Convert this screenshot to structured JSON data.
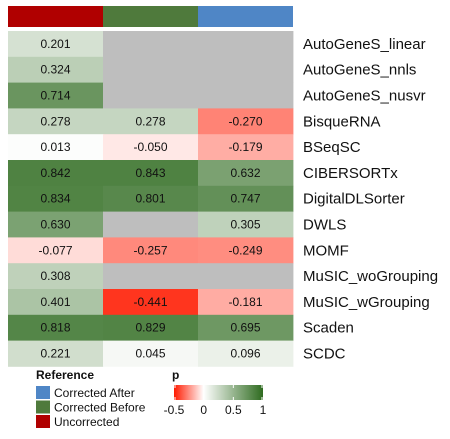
{
  "chart_data": {
    "type": "heatmap",
    "columns": [
      "Uncorrected",
      "Corrected Before",
      "Corrected After"
    ],
    "column_colors": {
      "Uncorrected": "#b00000",
      "Corrected Before": "#4f7a3c",
      "Corrected After": "#4f86c6"
    },
    "rows": [
      "AutoGeneS_linear",
      "AutoGeneS_nnls",
      "AutoGeneS_nusvr",
      "BisqueRNA",
      "BSeqSC",
      "CIBERSORTx",
      "DigitalDLSorter",
      "DWLS",
      "MOMF",
      "MuSIC_woGrouping",
      "MuSIC_wGrouping",
      "Scaden",
      "SCDC"
    ],
    "values": [
      [
        0.201,
        null,
        null
      ],
      [
        0.324,
        null,
        null
      ],
      [
        0.714,
        null,
        null
      ],
      [
        0.278,
        0.278,
        -0.27
      ],
      [
        0.013,
        -0.05,
        -0.179
      ],
      [
        0.842,
        0.843,
        0.632
      ],
      [
        0.834,
        0.801,
        0.747
      ],
      [
        0.63,
        null,
        0.305
      ],
      [
        -0.077,
        -0.257,
        -0.249
      ],
      [
        0.308,
        null,
        null
      ],
      [
        0.401,
        -0.441,
        -0.181
      ],
      [
        0.818,
        0.829,
        0.695
      ],
      [
        0.221,
        0.045,
        0.096
      ]
    ],
    "cell_labels": [
      [
        "0.201",
        "",
        ""
      ],
      [
        "0.324",
        "",
        ""
      ],
      [
        "0.714",
        "",
        ""
      ],
      [
        "0.278",
        "0.278",
        "-0.270"
      ],
      [
        "0.013",
        "-0.050",
        "-0.179"
      ],
      [
        "0.842",
        "0.843",
        "0.632"
      ],
      [
        "0.834",
        "0.801",
        "0.747"
      ],
      [
        "0.630",
        "",
        "0.305"
      ],
      [
        "-0.077",
        "-0.257",
        "-0.249"
      ],
      [
        "0.308",
        "",
        ""
      ],
      [
        "0.401",
        "-0.441",
        "-0.181"
      ],
      [
        "0.818",
        "0.829",
        "0.695"
      ],
      [
        "0.221",
        "0.045",
        "0.096"
      ]
    ],
    "missing_color": "#bebebe",
    "color_scale": {
      "low": -0.5,
      "mid": 0,
      "high": 1,
      "low_color": "#ff1a00",
      "mid_color": "#ffffff",
      "high_color": "#2e6b1f"
    },
    "legend": {
      "annotation_title": "Reference",
      "annotation_entries": [
        "Corrected After",
        "Corrected Before",
        "Uncorrected"
      ],
      "scale_title": "p",
      "scale_ticks": [
        -0.5,
        0,
        0.5,
        1
      ],
      "scale_tick_labels": [
        "-0.5",
        "0",
        "0.5",
        "1"
      ],
      "placement": "bottom-left"
    }
  }
}
